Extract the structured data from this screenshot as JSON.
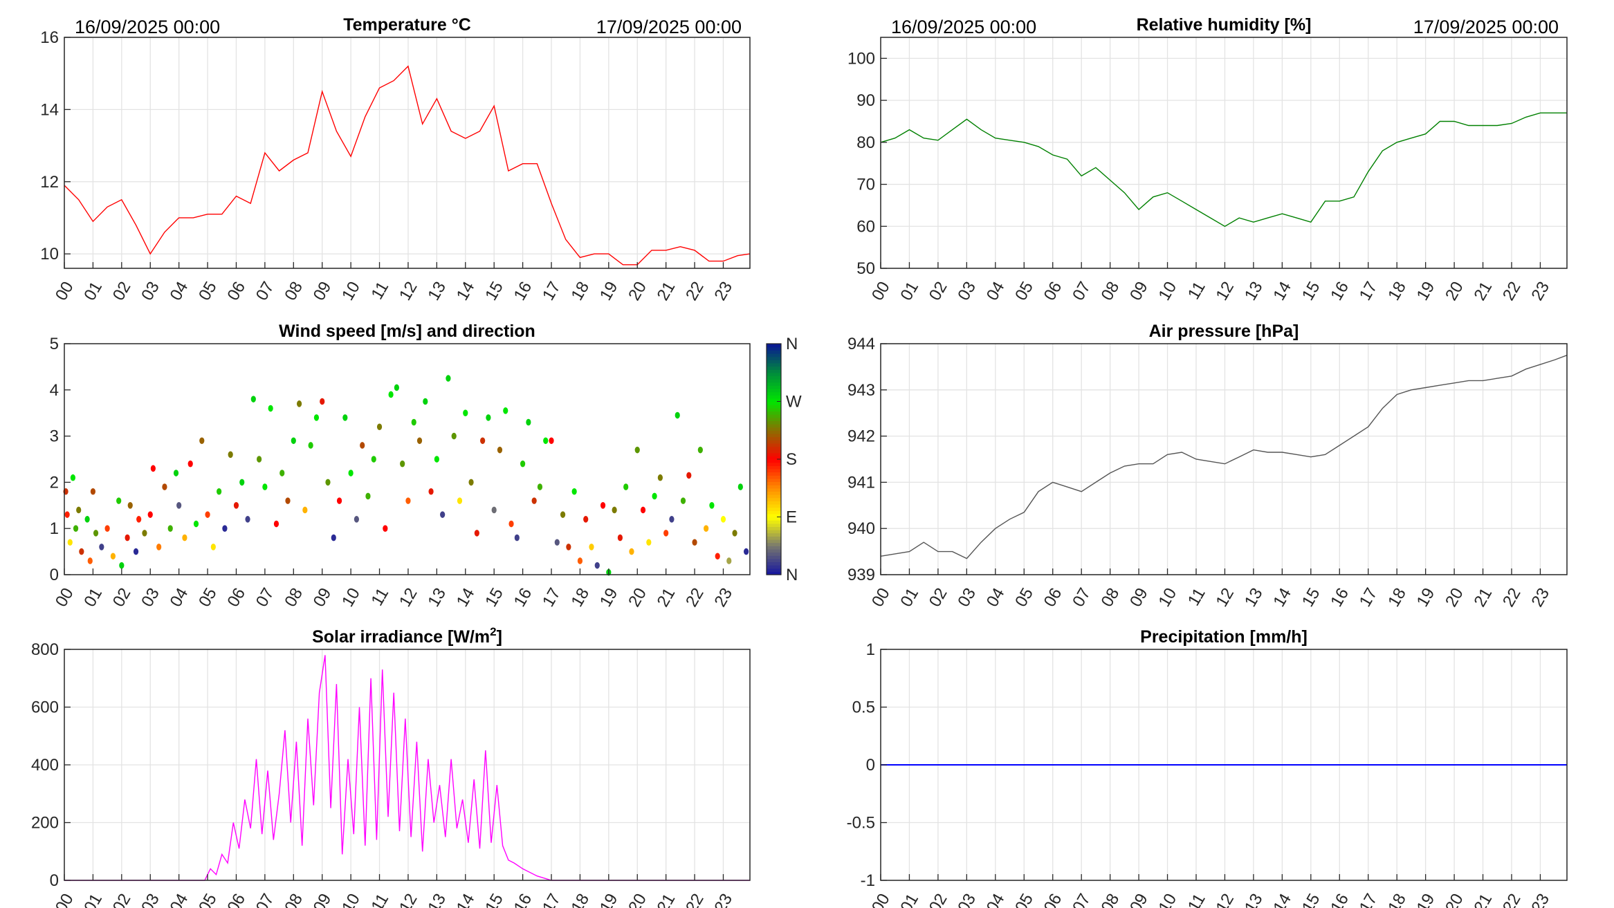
{
  "header": {
    "start_date": "16/09/2025 00:00",
    "end_date": "17/09/2025 00:00"
  },
  "colors": {
    "temperature": "#ff0000",
    "humidity": "#008000",
    "pressure": "#555555",
    "solar": "#ff00ff",
    "precip": "#0000ff"
  },
  "hours": [
    "00",
    "01",
    "02",
    "03",
    "04",
    "05",
    "06",
    "07",
    "08",
    "09",
    "10",
    "11",
    "12",
    "13",
    "14",
    "15",
    "16",
    "17",
    "18",
    "19",
    "20",
    "21",
    "22",
    "23"
  ],
  "chart_data": [
    {
      "id": "temp",
      "type": "line",
      "title": "Temperature °C",
      "xlabel": "",
      "ylabel": "",
      "xlim": [
        0,
        23.93
      ],
      "ylim": [
        9.6,
        16
      ],
      "yticks": [
        10,
        12,
        14,
        16
      ],
      "grid": true,
      "x": [
        0,
        0.5,
        1,
        1.5,
        2,
        2.5,
        3,
        3.5,
        4,
        4.5,
        5,
        5.5,
        6,
        6.5,
        7,
        7.5,
        8,
        8.5,
        9,
        9.5,
        10,
        10.5,
        11,
        11.5,
        12,
        12.5,
        13,
        13.5,
        14,
        14.5,
        15,
        15.5,
        16,
        16.5,
        17,
        17.5,
        18,
        18.5,
        19,
        19.5,
        20,
        20.5,
        21,
        21.5,
        22,
        22.5,
        23,
        23.5,
        23.93
      ],
      "values": [
        11.9,
        11.5,
        10.9,
        11.3,
        11.5,
        10.8,
        10.0,
        10.6,
        11.0,
        11.0,
        11.1,
        11.1,
        11.6,
        11.4,
        12.8,
        12.3,
        12.6,
        12.8,
        14.5,
        13.4,
        12.7,
        13.8,
        14.6,
        14.8,
        15.2,
        13.6,
        14.3,
        13.4,
        13.2,
        13.4,
        14.1,
        12.3,
        12.5,
        12.5,
        11.4,
        10.4,
        9.9,
        10.0,
        10.0,
        9.7,
        9.7,
        10.1,
        10.1,
        10.2,
        10.1,
        9.8,
        9.8,
        9.95,
        10.0
      ]
    },
    {
      "id": "hum",
      "type": "line",
      "title": "Relative humidity [%]",
      "xlabel": "",
      "ylabel": "",
      "xlim": [
        0,
        23.93
      ],
      "ylim": [
        50,
        105
      ],
      "yticks": [
        50,
        60,
        70,
        80,
        90,
        100
      ],
      "grid": true,
      "x": [
        0,
        0.5,
        1,
        1.5,
        2,
        2.5,
        3,
        3.5,
        4,
        4.5,
        5,
        5.5,
        6,
        6.5,
        7,
        7.5,
        8,
        8.5,
        9,
        9.5,
        10,
        10.5,
        11,
        11.5,
        12,
        12.5,
        13,
        13.5,
        14,
        14.5,
        15,
        15.5,
        16,
        16.5,
        17,
        17.5,
        18,
        18.5,
        19,
        19.5,
        20,
        20.5,
        21,
        21.5,
        22,
        22.5,
        23,
        23.5,
        23.93
      ],
      "values": [
        80,
        81,
        83,
        81,
        80.5,
        83,
        85.5,
        83,
        81,
        80.5,
        80,
        79,
        77,
        76,
        72,
        74,
        71,
        68,
        64,
        67,
        68,
        66,
        64,
        62,
        60,
        62,
        61,
        62,
        63,
        62,
        61,
        66,
        66,
        67,
        73,
        78,
        80,
        81,
        82,
        85,
        85,
        84,
        84,
        84,
        84.5,
        86,
        87,
        87,
        87
      ]
    },
    {
      "id": "wind",
      "type": "scatter",
      "title": "Wind speed [m/s] and direction",
      "xlabel": "",
      "ylabel": "",
      "xlim": [
        0,
        23.93
      ],
      "ylim": [
        0,
        5
      ],
      "yticks": [
        0,
        1,
        2,
        3,
        4,
        5
      ],
      "grid": false,
      "colorbar": {
        "labels": [
          "N",
          "E",
          "S",
          "W",
          "N"
        ],
        "range": [
          0,
          360
        ]
      },
      "points_columns": [
        "hour",
        "speed",
        "direction_deg"
      ],
      "points": [
        [
          0.05,
          1.8,
          200
        ],
        [
          0.1,
          1.3,
          170
        ],
        [
          0.2,
          0.7,
          100
        ],
        [
          0.3,
          2.1,
          270
        ],
        [
          0.4,
          1.0,
          250
        ],
        [
          0.5,
          1.4,
          230
        ],
        [
          0.6,
          0.5,
          200
        ],
        [
          0.8,
          1.2,
          280
        ],
        [
          0.9,
          0.3,
          150
        ],
        [
          1.0,
          1.8,
          210
        ],
        [
          1.1,
          0.9,
          240
        ],
        [
          1.3,
          0.6,
          20
        ],
        [
          1.5,
          1.0,
          160
        ],
        [
          1.7,
          0.4,
          120
        ],
        [
          1.9,
          1.6,
          260
        ],
        [
          2.0,
          0.2,
          280
        ],
        [
          2.2,
          0.8,
          190
        ],
        [
          2.3,
          1.5,
          220
        ],
        [
          2.5,
          0.5,
          10
        ],
        [
          2.6,
          1.2,
          170
        ],
        [
          2.8,
          0.9,
          230
        ],
        [
          3.0,
          1.3,
          180
        ],
        [
          3.1,
          2.3,
          180
        ],
        [
          3.3,
          0.6,
          140
        ],
        [
          3.5,
          1.9,
          210
        ],
        [
          3.7,
          1.0,
          250
        ],
        [
          3.9,
          2.2,
          280
        ],
        [
          4.0,
          1.5,
          30
        ],
        [
          4.2,
          0.8,
          120
        ],
        [
          4.4,
          2.4,
          180
        ],
        [
          4.6,
          1.1,
          270
        ],
        [
          4.8,
          2.9,
          220
        ],
        [
          5.0,
          1.3,
          160
        ],
        [
          5.2,
          0.6,
          100
        ],
        [
          5.4,
          1.8,
          260
        ],
        [
          5.6,
          1.0,
          10
        ],
        [
          5.8,
          2.6,
          230
        ],
        [
          6.0,
          1.5,
          190
        ],
        [
          6.2,
          2.0,
          280
        ],
        [
          6.4,
          1.2,
          20
        ],
        [
          6.6,
          3.8,
          280
        ],
        [
          6.8,
          2.5,
          240
        ],
        [
          7.0,
          1.9,
          270
        ],
        [
          7.2,
          3.6,
          270
        ],
        [
          7.4,
          1.1,
          180
        ],
        [
          7.6,
          2.2,
          250
        ],
        [
          7.8,
          1.6,
          210
        ],
        [
          8.0,
          2.9,
          280
        ],
        [
          8.2,
          3.7,
          230
        ],
        [
          8.4,
          1.4,
          120
        ],
        [
          8.6,
          2.8,
          260
        ],
        [
          8.8,
          3.4,
          270
        ],
        [
          9.0,
          3.75,
          190
        ],
        [
          9.2,
          2.0,
          240
        ],
        [
          9.4,
          0.8,
          10
        ],
        [
          9.6,
          1.6,
          180
        ],
        [
          9.8,
          3.4,
          280
        ],
        [
          10.0,
          2.2,
          270
        ],
        [
          10.2,
          1.2,
          30
        ],
        [
          10.4,
          2.8,
          210
        ],
        [
          10.6,
          1.7,
          250
        ],
        [
          10.8,
          2.5,
          260
        ],
        [
          11.0,
          3.2,
          230
        ],
        [
          11.2,
          1.0,
          180
        ],
        [
          11.4,
          3.9,
          270
        ],
        [
          11.6,
          4.05,
          280
        ],
        [
          11.8,
          2.4,
          240
        ],
        [
          12.0,
          1.6,
          150
        ],
        [
          12.2,
          3.3,
          260
        ],
        [
          12.4,
          2.9,
          220
        ],
        [
          12.6,
          3.75,
          280
        ],
        [
          12.8,
          1.8,
          190
        ],
        [
          13.0,
          2.5,
          270
        ],
        [
          13.2,
          1.3,
          20
        ],
        [
          13.4,
          4.25,
          280
        ],
        [
          13.6,
          3.0,
          240
        ],
        [
          13.8,
          1.6,
          100
        ],
        [
          14.0,
          3.5,
          270
        ],
        [
          14.2,
          2.0,
          230
        ],
        [
          14.4,
          0.9,
          190
        ],
        [
          14.6,
          2.9,
          200
        ],
        [
          14.8,
          3.4,
          280
        ],
        [
          15.0,
          1.4,
          40
        ],
        [
          15.2,
          2.7,
          220
        ],
        [
          15.4,
          3.55,
          270
        ],
        [
          15.6,
          1.1,
          160
        ],
        [
          15.8,
          0.8,
          20
        ],
        [
          16.0,
          2.4,
          260
        ],
        [
          16.2,
          3.3,
          280
        ],
        [
          16.4,
          1.6,
          200
        ],
        [
          16.6,
          1.9,
          250
        ],
        [
          16.8,
          2.9,
          270
        ],
        [
          17.0,
          2.9,
          180
        ],
        [
          17.2,
          0.7,
          30
        ],
        [
          17.4,
          1.3,
          230
        ],
        [
          17.6,
          0.6,
          200
        ],
        [
          17.8,
          1.8,
          270
        ],
        [
          18.0,
          0.3,
          150
        ],
        [
          18.2,
          1.2,
          190
        ],
        [
          18.4,
          0.6,
          110
        ],
        [
          18.6,
          0.2,
          20
        ],
        [
          18.8,
          1.5,
          180
        ],
        [
          19.0,
          0.05,
          280
        ],
        [
          19.2,
          1.4,
          230
        ],
        [
          19.4,
          0.8,
          190
        ],
        [
          19.6,
          1.9,
          260
        ],
        [
          19.8,
          0.5,
          120
        ],
        [
          20.0,
          2.7,
          240
        ],
        [
          20.2,
          1.4,
          180
        ],
        [
          20.4,
          0.7,
          100
        ],
        [
          20.6,
          1.7,
          270
        ],
        [
          20.8,
          2.1,
          230
        ],
        [
          21.0,
          0.9,
          160
        ],
        [
          21.2,
          1.2,
          20
        ],
        [
          21.4,
          3.45,
          280
        ],
        [
          21.6,
          1.6,
          250
        ],
        [
          21.8,
          2.15,
          190
        ],
        [
          22.0,
          0.7,
          210
        ],
        [
          22.2,
          2.7,
          250
        ],
        [
          22.4,
          1.0,
          120
        ],
        [
          22.6,
          1.5,
          270
        ],
        [
          22.8,
          0.4,
          170
        ],
        [
          23.0,
          1.2,
          90
        ],
        [
          23.2,
          0.3,
          60
        ],
        [
          23.4,
          0.9,
          230
        ],
        [
          23.6,
          1.9,
          280
        ],
        [
          23.8,
          0.5,
          10
        ]
      ]
    },
    {
      "id": "pres",
      "type": "line",
      "title": "Air pressure [hPa]",
      "xlabel": "",
      "ylabel": "",
      "xlim": [
        0,
        23.93
      ],
      "ylim": [
        939,
        944
      ],
      "yticks": [
        939,
        940,
        941,
        942,
        943,
        944
      ],
      "grid": true,
      "x": [
        0,
        0.5,
        1,
        1.5,
        2,
        2.5,
        3,
        3.5,
        4,
        4.5,
        5,
        5.5,
        6,
        6.5,
        7,
        7.5,
        8,
        8.5,
        9,
        9.5,
        10,
        10.5,
        11,
        11.5,
        12,
        12.5,
        13,
        13.5,
        14,
        14.5,
        15,
        15.5,
        16,
        16.5,
        17,
        17.5,
        18,
        18.5,
        19,
        19.5,
        20,
        20.5,
        21,
        21.5,
        22,
        22.5,
        23,
        23.5,
        23.93
      ],
      "values": [
        939.4,
        939.45,
        939.5,
        939.7,
        939.5,
        939.5,
        939.35,
        939.7,
        940.0,
        940.2,
        940.35,
        940.8,
        941.0,
        940.9,
        940.8,
        941.0,
        941.2,
        941.35,
        941.4,
        941.4,
        941.6,
        941.65,
        941.5,
        941.45,
        941.4,
        941.55,
        941.7,
        941.65,
        941.65,
        941.6,
        941.55,
        941.6,
        941.8,
        942.0,
        942.2,
        942.6,
        942.9,
        943.0,
        943.05,
        943.1,
        943.15,
        943.2,
        943.2,
        943.25,
        943.3,
        943.45,
        943.55,
        943.65,
        943.75
      ]
    },
    {
      "id": "solar",
      "type": "line",
      "title": "Solar irradiance [W/m",
      "title_sup": "2",
      "title_end": "]",
      "xlabel": "",
      "ylabel": "",
      "xlim": [
        0,
        23.93
      ],
      "ylim": [
        0,
        800
      ],
      "yticks": [
        0,
        200,
        400,
        600,
        800
      ],
      "grid": true,
      "x": [
        0,
        4.9,
        5.1,
        5.3,
        5.5,
        5.7,
        5.9,
        6.1,
        6.3,
        6.5,
        6.7,
        6.9,
        7.1,
        7.3,
        7.5,
        7.7,
        7.9,
        8.1,
        8.3,
        8.5,
        8.7,
        8.9,
        9.1,
        9.3,
        9.5,
        9.7,
        9.9,
        10.1,
        10.3,
        10.5,
        10.7,
        10.9,
        11.1,
        11.3,
        11.5,
        11.7,
        11.9,
        12.1,
        12.3,
        12.5,
        12.7,
        12.9,
        13.1,
        13.3,
        13.5,
        13.7,
        13.9,
        14.1,
        14.3,
        14.5,
        14.7,
        14.9,
        15.1,
        15.3,
        15.5,
        15.7,
        16.0,
        16.5,
        17.0,
        23.93
      ],
      "values": [
        0,
        0,
        40,
        20,
        90,
        60,
        200,
        110,
        280,
        180,
        420,
        160,
        380,
        140,
        300,
        520,
        200,
        480,
        120,
        560,
        260,
        650,
        780,
        250,
        680,
        90,
        420,
        160,
        600,
        120,
        700,
        140,
        730,
        220,
        650,
        170,
        560,
        150,
        480,
        100,
        420,
        200,
        330,
        150,
        420,
        180,
        280,
        130,
        350,
        110,
        450,
        130,
        330,
        120,
        70,
        60,
        40,
        15,
        0,
        0
      ]
    },
    {
      "id": "precip",
      "type": "line",
      "title": "Precipitation [mm/h]",
      "xlabel": "",
      "ylabel": "",
      "xlim": [
        0,
        23.93
      ],
      "ylim": [
        -1,
        1
      ],
      "yticks": [
        -1,
        -0.5,
        0,
        0.5,
        1
      ],
      "grid": true,
      "x": [
        0,
        23.93
      ],
      "values": [
        0,
        0
      ]
    }
  ]
}
